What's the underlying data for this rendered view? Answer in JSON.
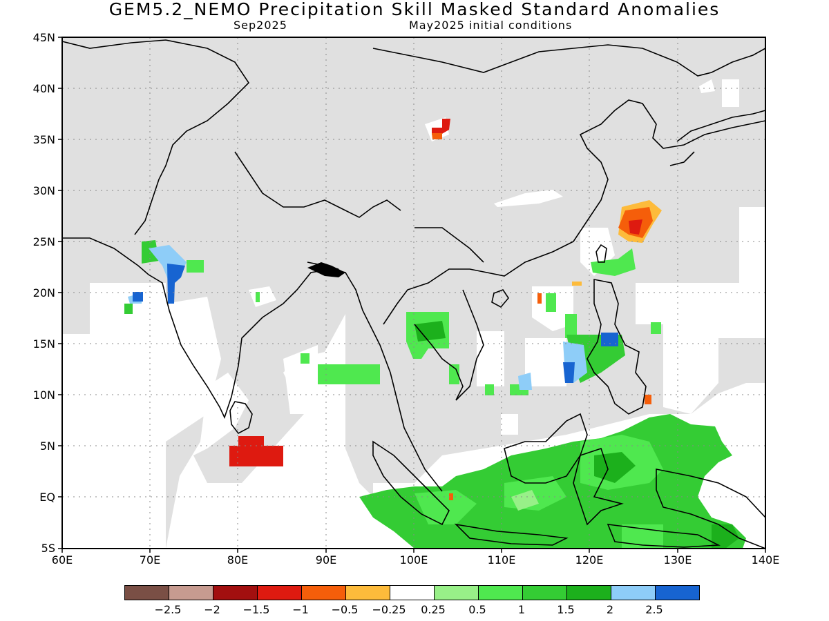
{
  "title": "GEM5.2_NEMO Precipitation Skill Masked Standard Anomalies",
  "subtitle_left": "Sep2025",
  "subtitle_right": "May2025 initial conditions",
  "y_ticks": [
    "45N",
    "40N",
    "35N",
    "30N",
    "25N",
    "20N",
    "15N",
    "10N",
    "5N",
    "EQ",
    "5S"
  ],
  "x_ticks": [
    "60E",
    "70E",
    "80E",
    "90E",
    "100E",
    "110E",
    "120E",
    "130E",
    "140E"
  ],
  "colorbar": {
    "colors": [
      "#7a4f45",
      "#c79b90",
      "#a20f0f",
      "#de1a10",
      "#f55e0a",
      "#fdbb3b",
      "#ffffff",
      "#98f088",
      "#4fe84f",
      "#34cc34",
      "#1cb01c",
      "#8ecdf8",
      "#1764d1"
    ],
    "labels": [
      "−2.5",
      "−2",
      "−1.5",
      "−1",
      "−0.5",
      "−0.25",
      "0.25",
      "0.5",
      "1",
      "1.5",
      "2",
      "2.5"
    ]
  },
  "colors": {
    "masked_gray": "#e0e0e0",
    "coast": "#000000"
  }
}
